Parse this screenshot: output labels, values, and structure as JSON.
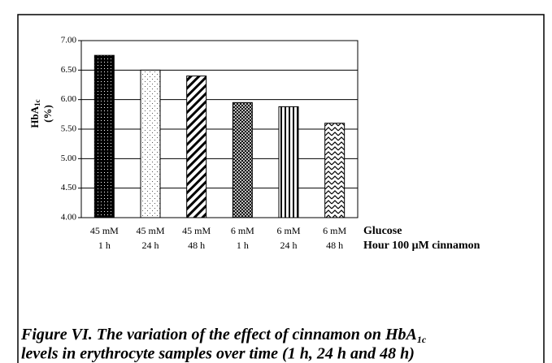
{
  "chart_data": {
    "type": "bar",
    "y_label": {
      "parts": [
        "HbA",
        "1c"
      ],
      "unit": "(%)"
    },
    "categories": [
      [
        "45 mM",
        "1 h"
      ],
      [
        "45 mM",
        "24 h"
      ],
      [
        "45 mM",
        "48 h"
      ],
      [
        "6 mM",
        "1 h"
      ],
      [
        "6 mM",
        "24 h"
      ],
      [
        "6 mM",
        "48 h"
      ]
    ],
    "category_row_labels": [
      "Glucose",
      "Hour 100 μM cinnamon"
    ],
    "values": [
      6.75,
      6.5,
      6.4,
      5.95,
      5.88,
      5.6
    ],
    "ylim": [
      4,
      7
    ],
    "yticks": [
      {
        "value": 4,
        "label": "4.00"
      },
      {
        "value": 4.5,
        "label": "4.50"
      },
      {
        "value": 5,
        "label": "5.00"
      },
      {
        "value": 5.5,
        "label": "5.50"
      },
      {
        "value": 6,
        "label": "6.00"
      },
      {
        "value": 6.5,
        "label": "6.50"
      },
      {
        "value": 7,
        "label": "7.00"
      }
    ],
    "grid": true,
    "caption": {
      "parts": [
        "Figure VI. The variation of the effect of cinnamon on HbA",
        "1c",
        "levels in erythrocyte samples over time (1 h, 24 h and 48 h)"
      ]
    }
  }
}
